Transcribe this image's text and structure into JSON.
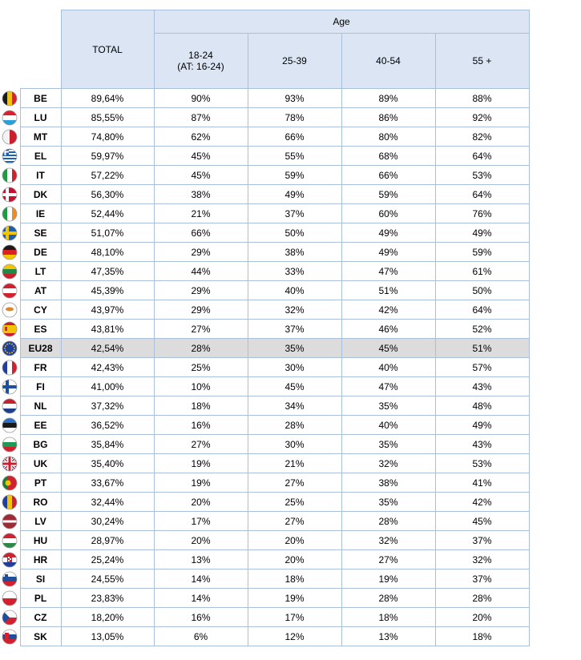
{
  "header": {
    "total": "TOTAL",
    "group": "Age",
    "age_cols": [
      "18-24\n(AT: 16-24)",
      "25-39",
      "40-54",
      "55 +"
    ]
  },
  "rows": [
    {
      "code": "BE",
      "total": "89,64%",
      "v": [
        "90%",
        "93%",
        "89%",
        "88%"
      ],
      "flag": "be-flag-icon"
    },
    {
      "code": "LU",
      "total": "85,55%",
      "v": [
        "87%",
        "78%",
        "86%",
        "92%"
      ],
      "flag": "lu-flag-icon"
    },
    {
      "code": "MT",
      "total": "74,80%",
      "v": [
        "62%",
        "66%",
        "80%",
        "82%"
      ],
      "flag": "mt-flag-icon"
    },
    {
      "code": "EL",
      "total": "59,97%",
      "v": [
        "45%",
        "55%",
        "68%",
        "64%"
      ],
      "flag": "el-flag-icon"
    },
    {
      "code": "IT",
      "total": "57,22%",
      "v": [
        "45%",
        "59%",
        "66%",
        "53%"
      ],
      "flag": "it-flag-icon"
    },
    {
      "code": "DK",
      "total": "56,30%",
      "v": [
        "38%",
        "49%",
        "59%",
        "64%"
      ],
      "flag": "dk-flag-icon"
    },
    {
      "code": "IE",
      "total": "52,44%",
      "v": [
        "21%",
        "37%",
        "60%",
        "76%"
      ],
      "flag": "ie-flag-icon"
    },
    {
      "code": "SE",
      "total": "51,07%",
      "v": [
        "66%",
        "50%",
        "49%",
        "49%"
      ],
      "flag": "se-flag-icon"
    },
    {
      "code": "DE",
      "total": "48,10%",
      "v": [
        "29%",
        "38%",
        "49%",
        "59%"
      ],
      "flag": "de-flag-icon"
    },
    {
      "code": "LT",
      "total": "47,35%",
      "v": [
        "44%",
        "33%",
        "47%",
        "61%"
      ],
      "flag": "lt-flag-icon"
    },
    {
      "code": "AT",
      "total": "45,39%",
      "v": [
        "29%",
        "40%",
        "51%",
        "50%"
      ],
      "flag": "at-flag-icon"
    },
    {
      "code": "CY",
      "total": "43,97%",
      "v": [
        "29%",
        "32%",
        "42%",
        "64%"
      ],
      "flag": "cy-flag-icon"
    },
    {
      "code": "ES",
      "total": "43,81%",
      "v": [
        "27%",
        "37%",
        "46%",
        "52%"
      ],
      "flag": "es-flag-icon"
    },
    {
      "code": "EU28",
      "total": "42,54%",
      "v": [
        "28%",
        "35%",
        "45%",
        "51%"
      ],
      "flag": "eu-flag-icon",
      "highlight": true
    },
    {
      "code": "FR",
      "total": "42,43%",
      "v": [
        "25%",
        "30%",
        "40%",
        "57%"
      ],
      "flag": "fr-flag-icon"
    },
    {
      "code": "FI",
      "total": "41,00%",
      "v": [
        "10%",
        "45%",
        "47%",
        "43%"
      ],
      "flag": "fi-flag-icon"
    },
    {
      "code": "NL",
      "total": "37,32%",
      "v": [
        "18%",
        "34%",
        "35%",
        "48%"
      ],
      "flag": "nl-flag-icon"
    },
    {
      "code": "EE",
      "total": "36,52%",
      "v": [
        "16%",
        "28%",
        "40%",
        "49%"
      ],
      "flag": "ee-flag-icon"
    },
    {
      "code": "BG",
      "total": "35,84%",
      "v": [
        "27%",
        "30%",
        "35%",
        "43%"
      ],
      "flag": "bg-flag-icon"
    },
    {
      "code": "UK",
      "total": "35,40%",
      "v": [
        "19%",
        "21%",
        "32%",
        "53%"
      ],
      "flag": "uk-flag-icon"
    },
    {
      "code": "PT",
      "total": "33,67%",
      "v": [
        "19%",
        "27%",
        "38%",
        "41%"
      ],
      "flag": "pt-flag-icon"
    },
    {
      "code": "RO",
      "total": "32,44%",
      "v": [
        "20%",
        "25%",
        "35%",
        "42%"
      ],
      "flag": "ro-flag-icon"
    },
    {
      "code": "LV",
      "total": "30,24%",
      "v": [
        "17%",
        "27%",
        "28%",
        "45%"
      ],
      "flag": "lv-flag-icon"
    },
    {
      "code": "HU",
      "total": "28,97%",
      "v": [
        "20%",
        "20%",
        "32%",
        "37%"
      ],
      "flag": "hu-flag-icon"
    },
    {
      "code": "HR",
      "total": "25,24%",
      "v": [
        "13%",
        "20%",
        "27%",
        "32%"
      ],
      "flag": "hr-flag-icon"
    },
    {
      "code": "SI",
      "total": "24,55%",
      "v": [
        "14%",
        "18%",
        "19%",
        "37%"
      ],
      "flag": "si-flag-icon"
    },
    {
      "code": "PL",
      "total": "23,83%",
      "v": [
        "14%",
        "19%",
        "28%",
        "28%"
      ],
      "flag": "pl-flag-icon"
    },
    {
      "code": "CZ",
      "total": "18,20%",
      "v": [
        "16%",
        "17%",
        "18%",
        "20%"
      ],
      "flag": "cz-flag-icon"
    },
    {
      "code": "SK",
      "total": "13,05%",
      "v": [
        "6%",
        "12%",
        "13%",
        "18%"
      ],
      "flag": "sk-flag-icon"
    }
  ]
}
